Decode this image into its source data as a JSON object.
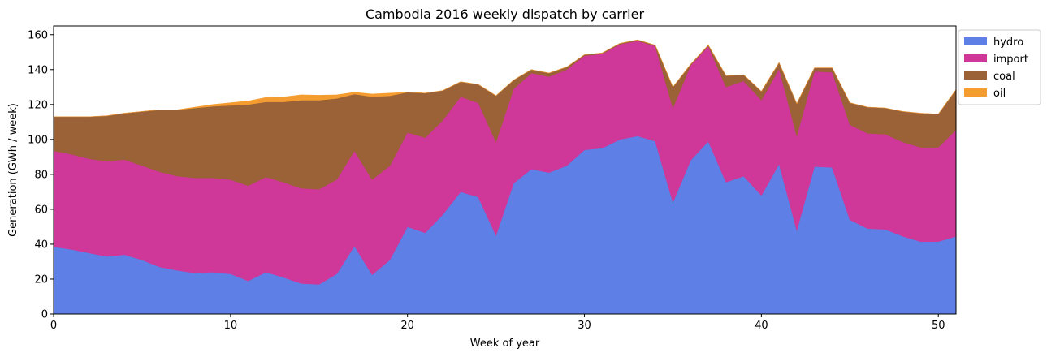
{
  "chart_data": {
    "type": "area",
    "stacked": true,
    "title": "Cambodia 2016 weekly dispatch by carrier",
    "xlabel": "Week of year",
    "ylabel": "Generation (GWh / week)",
    "xlim": [
      0,
      51
    ],
    "ylim": [
      0,
      165
    ],
    "xticks": [
      0,
      10,
      20,
      30,
      40,
      50
    ],
    "yticks": [
      0,
      20,
      40,
      60,
      80,
      100,
      120,
      140,
      160
    ],
    "legend_position": "outside-top-right",
    "grid": false,
    "x": [
      0,
      1,
      2,
      3,
      4,
      5,
      6,
      7,
      8,
      9,
      10,
      11,
      12,
      13,
      14,
      15,
      16,
      17,
      18,
      19,
      20,
      21,
      22,
      23,
      24,
      25,
      26,
      27,
      28,
      29,
      30,
      31,
      32,
      33,
      34,
      35,
      36,
      37,
      38,
      39,
      40,
      41,
      42,
      43,
      44,
      45,
      46,
      47,
      48,
      49,
      50,
      51
    ],
    "series": [
      {
        "name": "hydro",
        "color": "#5e7fe6",
        "values": [
          38.5,
          37,
          35,
          33,
          34,
          31,
          27,
          25,
          23.5,
          24,
          23,
          19,
          24,
          21,
          17.5,
          17,
          23,
          39,
          22.5,
          31,
          50,
          46.5,
          57,
          70,
          67,
          45,
          75,
          83,
          81,
          85,
          94,
          95,
          100,
          102,
          99,
          64,
          88,
          99,
          75.5,
          79,
          68,
          86,
          48,
          84.5,
          84,
          54,
          49,
          48.5,
          44.5,
          41.5,
          41.5,
          44.5
        ]
      },
      {
        "name": "import",
        "color": "#cf3798",
        "values": [
          55,
          54.5,
          54,
          54.5,
          54.5,
          54,
          54.5,
          54,
          54.5,
          54,
          54,
          54.5,
          54.5,
          54.5,
          54.5,
          54.5,
          54,
          54.5,
          54.5,
          54,
          54,
          54.5,
          54,
          54.5,
          54,
          53.5,
          54,
          55,
          55,
          55,
          54,
          54,
          54.5,
          54.5,
          54.5,
          54,
          54.5,
          54.5,
          54.5,
          54.5,
          54.5,
          54.5,
          54,
          54.5,
          54.5,
          54.5,
          54.5,
          54.5,
          54,
          54,
          54,
          61
        ]
      },
      {
        "name": "coal",
        "color": "#9a6236",
        "values": [
          19.5,
          21.5,
          24,
          26,
          26.5,
          31,
          35.5,
          38,
          40,
          41,
          42.5,
          46.5,
          43,
          46,
          50.5,
          51,
          46.5,
          32.5,
          47.5,
          40,
          23,
          25.5,
          17,
          8.5,
          10.5,
          26.5,
          5,
          2,
          2,
          1.5,
          0.5,
          0.5,
          0.5,
          0.5,
          0.5,
          12,
          0.5,
          0.5,
          6.5,
          3.5,
          5,
          3.5,
          18.5,
          2,
          2.5,
          12.5,
          15,
          15,
          17.5,
          19.5,
          19,
          23
        ]
      },
      {
        "name": "oil",
        "color": "#f59c30",
        "values": [
          0,
          0,
          0,
          0,
          0,
          0,
          0,
          0,
          0.5,
          1,
          1.5,
          2,
          2.5,
          2.8,
          3,
          2.8,
          2,
          1,
          1.5,
          1.5,
          0,
          0,
          0,
          0,
          0,
          0,
          0,
          0,
          0,
          0,
          0,
          0,
          0,
          0,
          0,
          0,
          0,
          0,
          0,
          0,
          0,
          0,
          0,
          0,
          0,
          0,
          0,
          0,
          0,
          0,
          0,
          0
        ]
      }
    ]
  }
}
